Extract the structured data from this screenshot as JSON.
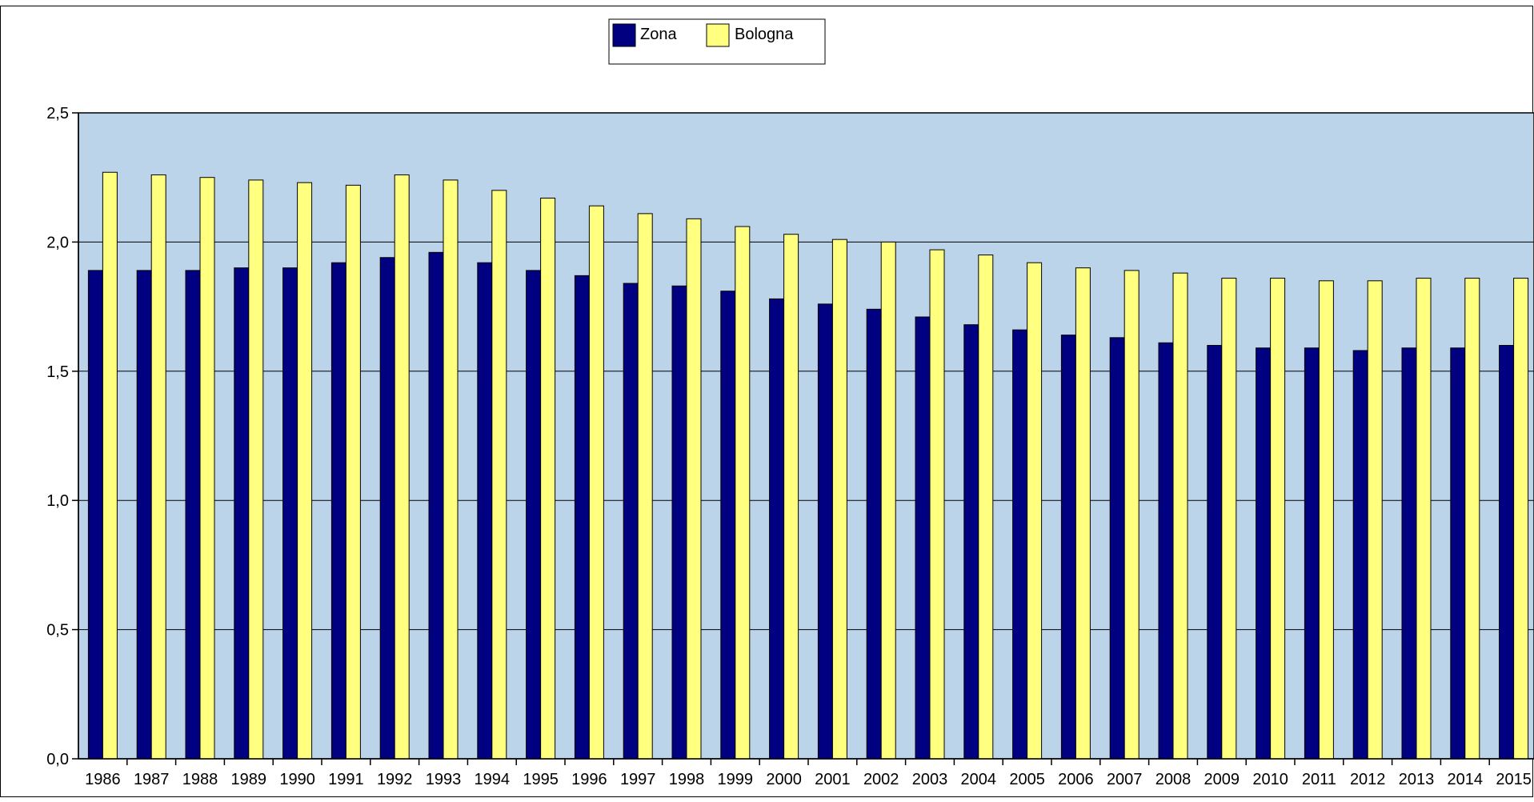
{
  "chart_data": {
    "type": "bar",
    "title": "",
    "xlabel": "",
    "ylabel": "",
    "categories": [
      "1986",
      "1987",
      "1988",
      "1989",
      "1990",
      "1991",
      "1992",
      "1993",
      "1994",
      "1995",
      "1996",
      "1997",
      "1998",
      "1999",
      "2000",
      "2001",
      "2002",
      "2003",
      "2004",
      "2005",
      "2006",
      "2007",
      "2008",
      "2009",
      "2010",
      "2011",
      "2012",
      "2013",
      "2014",
      "2015"
    ],
    "series": [
      {
        "name": "Zona",
        "color": "#000080",
        "values": [
          1.89,
          1.89,
          1.89,
          1.9,
          1.9,
          1.92,
          1.94,
          1.96,
          1.92,
          1.89,
          1.87,
          1.84,
          1.83,
          1.81,
          1.78,
          1.76,
          1.74,
          1.71,
          1.68,
          1.66,
          1.64,
          1.63,
          1.61,
          1.6,
          1.59,
          1.59,
          1.58,
          1.59,
          1.59,
          1.6
        ]
      },
      {
        "name": "Bologna",
        "color": "#FFFF80",
        "values": [
          2.27,
          2.26,
          2.25,
          2.24,
          2.23,
          2.22,
          2.26,
          2.24,
          2.2,
          2.17,
          2.14,
          2.11,
          2.09,
          2.06,
          2.03,
          2.01,
          2.0,
          1.97,
          1.95,
          1.92,
          1.9,
          1.89,
          1.88,
          1.86,
          1.86,
          1.85,
          1.85,
          1.86,
          1.86,
          1.86
        ]
      }
    ],
    "ylim": [
      0,
      2.5
    ],
    "yticks": [
      "0,0",
      "0,5",
      "1,0",
      "1,5",
      "2,0",
      "2,5"
    ],
    "grid": true,
    "legend": "top-center",
    "plot_background": "#BCD4EA"
  }
}
